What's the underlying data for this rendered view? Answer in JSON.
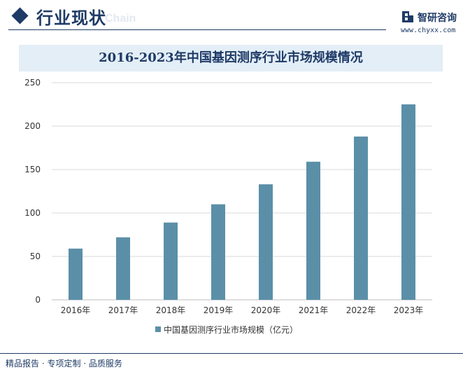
{
  "header": {
    "section_title": "行业现状",
    "watermark": "Chain",
    "brand_name": "智研咨询",
    "brand_url": "www.chyxx.com",
    "brand_icon": "brand-logo-icon"
  },
  "colors": {
    "accent": "#1f3b66",
    "bar": "#5b8fa8",
    "title_bg": "#e3eef7"
  },
  "chart_data": {
    "type": "bar",
    "title": "2016-2023年中国基因测序行业市场规模情况",
    "categories": [
      "2016年",
      "2017年",
      "2018年",
      "2019年",
      "2020年",
      "2021年",
      "2022年",
      "2023年"
    ],
    "series": [
      {
        "name": "中国基因测序行业市场规模（亿元）",
        "values": [
          59,
          72,
          89,
          110,
          133,
          159,
          188,
          225
        ]
      }
    ],
    "xlabel": "",
    "ylabel": "",
    "ylim": [
      0,
      250
    ],
    "yticks": [
      0,
      50,
      100,
      150,
      200,
      250
    ],
    "grid": true,
    "legend": "bottom"
  },
  "footer": {
    "text": "精品报告 · 专项定制 · 品质服务"
  }
}
